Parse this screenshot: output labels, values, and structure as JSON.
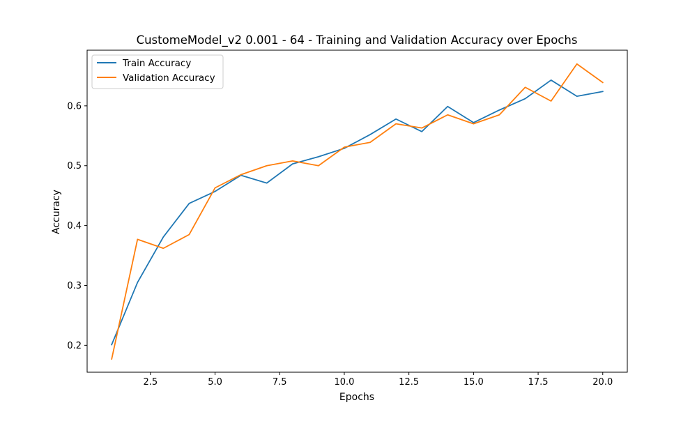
{
  "chart_data": {
    "type": "line",
    "title": "CustomeModel_v2 0.001 - 64 - Training and Validation Accuracy over Epochs",
    "xlabel": "Epochs",
    "ylabel": "Accuracy",
    "xlim": [
      0.05,
      20.95
    ],
    "ylim": [
      0.155,
      0.693
    ],
    "xticks": [
      2.5,
      5.0,
      7.5,
      10.0,
      12.5,
      15.0,
      17.5,
      20.0
    ],
    "xtick_labels": [
      "2.5",
      "5.0",
      "7.5",
      "10.0",
      "12.5",
      "15.0",
      "17.5",
      "20.0"
    ],
    "yticks": [
      0.2,
      0.3,
      0.4,
      0.5,
      0.6
    ],
    "ytick_labels": [
      "0.2",
      "0.3",
      "0.4",
      "0.5",
      "0.6"
    ],
    "grid": false,
    "legend_position": "top-left",
    "x": [
      1,
      2,
      3,
      4,
      5,
      6,
      7,
      8,
      9,
      10,
      11,
      12,
      13,
      14,
      15,
      16,
      17,
      18,
      19,
      20
    ],
    "series": [
      {
        "name": "Train Accuracy",
        "color": "#1f77b4",
        "values": [
          0.201,
          0.305,
          0.381,
          0.437,
          0.457,
          0.484,
          0.471,
          0.503,
          0.515,
          0.529,
          0.552,
          0.578,
          0.557,
          0.599,
          0.572,
          0.593,
          0.612,
          0.643,
          0.616,
          0.624
        ]
      },
      {
        "name": "Validation Accuracy",
        "color": "#ff7f0e",
        "values": [
          0.177,
          0.377,
          0.362,
          0.385,
          0.463,
          0.485,
          0.5,
          0.508,
          0.5,
          0.531,
          0.539,
          0.57,
          0.563,
          0.585,
          0.57,
          0.585,
          0.631,
          0.608,
          0.67,
          0.639
        ]
      }
    ]
  }
}
